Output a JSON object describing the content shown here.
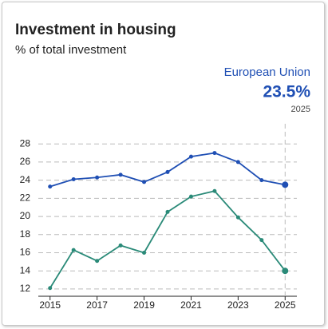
{
  "chart_data": {
    "type": "line",
    "title": "Investment in housing",
    "subtitle": "% of total investment",
    "highlight_label": "23.5%",
    "x": [
      2015,
      2016,
      2017,
      2018,
      2019,
      2020,
      2021,
      2022,
      2023,
      2024,
      2025
    ],
    "series": [
      {
        "name": "European Union",
        "color": "#1f4fb4",
        "values": [
          23.3,
          24.1,
          24.3,
          24.6,
          23.8,
          24.9,
          26.6,
          27.0,
          26.0,
          24.0,
          23.5
        ]
      },
      {
        "color": "#2a8a78",
        "values": [
          12.1,
          16.3,
          15.1,
          16.8,
          16.0,
          20.5,
          22.2,
          22.8,
          19.9,
          17.4,
          14.0
        ]
      }
    ],
    "xlim": [
      2014.5,
      2025.5
    ],
    "xticks": [
      2015,
      2017,
      2019,
      2021,
      2023,
      2025
    ],
    "ylim": [
      11.2,
      28.9
    ],
    "yticks": [
      12,
      14,
      16,
      18,
      20,
      22,
      24,
      26,
      28
    ],
    "grid": true
  }
}
